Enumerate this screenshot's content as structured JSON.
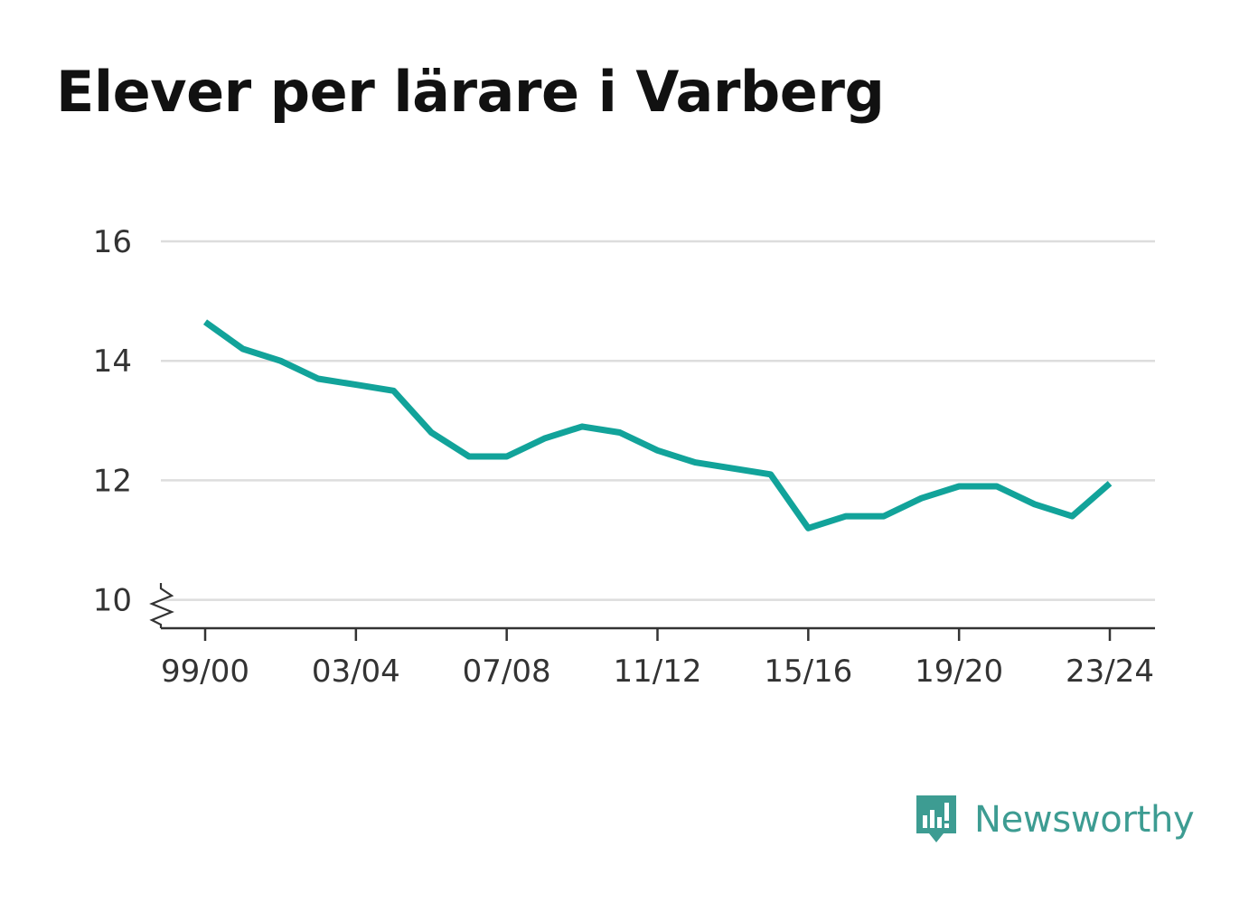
{
  "header": {
    "title": "Elever per lärare i Varberg"
  },
  "brand": {
    "name": "Newsworthy",
    "logo_icon": "bar-chart-speech-bubble-icon",
    "color": "#3d9c92"
  },
  "chart_data": {
    "type": "line",
    "title": "Elever per lärare i Varberg",
    "xlabel": "",
    "ylabel": "",
    "x": [
      "99/00",
      "00/01",
      "01/02",
      "02/03",
      "03/04",
      "04/05",
      "05/06",
      "06/07",
      "07/08",
      "08/09",
      "09/10",
      "10/11",
      "11/12",
      "12/13",
      "13/14",
      "14/15",
      "15/16",
      "16/17",
      "17/18",
      "18/19",
      "19/20",
      "20/21",
      "21/22",
      "22/23",
      "23/24"
    ],
    "x_tick_labels": [
      "99/00",
      "03/04",
      "07/08",
      "11/12",
      "15/16",
      "19/20",
      "23/24"
    ],
    "series": [
      {
        "values": [
          14.65,
          14.2,
          14.0,
          13.7,
          13.6,
          13.5,
          12.8,
          12.4,
          12.4,
          12.7,
          12.9,
          12.8,
          12.5,
          12.3,
          12.2,
          12.1,
          11.2,
          11.4,
          11.4,
          11.7,
          11.9,
          11.9,
          11.6,
          11.4,
          11.95
        ],
        "color": "#12a39a"
      }
    ],
    "y_ticks": [
      10,
      12,
      14,
      16
    ],
    "ylim": [
      9.5,
      16
    ],
    "y_axis_break": true,
    "grid": true,
    "legend": "none"
  }
}
